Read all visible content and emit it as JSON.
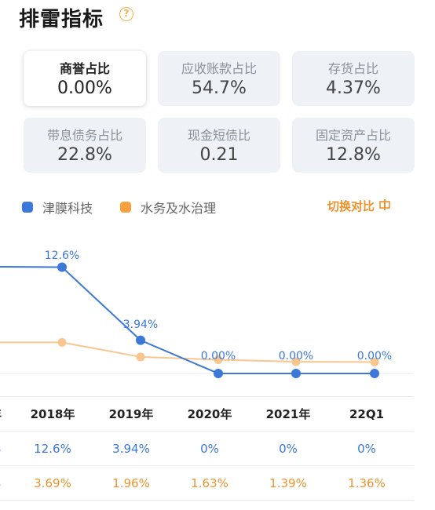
{
  "header": {
    "title": "排雷指标",
    "help_icon": "question-circle-icon"
  },
  "metrics": [
    {
      "label": "商誉占比",
      "value": "0.00%",
      "active": true
    },
    {
      "label": "应收账款占比",
      "value": "54.7%",
      "active": false
    },
    {
      "label": "存货占比",
      "value": "4.37%",
      "active": false
    },
    {
      "label": "带息债务占比",
      "value": "22.8%",
      "active": false
    },
    {
      "label": "现金短债比",
      "value": "0.21",
      "active": false
    },
    {
      "label": "固定资产占比",
      "value": "12.8%",
      "active": false
    }
  ],
  "legend": {
    "company": {
      "name": "津膜科技",
      "color": "#3c78d8"
    },
    "industry": {
      "name": "水务及水治理",
      "color": "#f7a23e"
    }
  },
  "toggle": {
    "label": "切换对比",
    "icon": "switch-icon"
  },
  "chart_data": {
    "type": "line",
    "categories": [
      "",
      "2018年",
      "2019年",
      "2020年",
      "2021年",
      "22Q1"
    ],
    "series": [
      {
        "name": "津膜科技",
        "values": [
          null,
          12.6,
          3.94,
          0,
          0,
          0
        ],
        "labels": [
          "%",
          "12.6%",
          "3.94%",
          "0.00%",
          "0.00%",
          "0.00%"
        ]
      },
      {
        "name": "水务及水治理",
        "values": [
          null,
          3.69,
          1.96,
          1.63,
          1.39,
          1.36
        ]
      }
    ]
  },
  "table": {
    "headers": [
      "年",
      "2018年",
      "2019年",
      "2020年",
      "2021年",
      "22Q1"
    ],
    "company_row": [
      "%",
      "12.6%",
      "3.94%",
      "0%",
      "0%",
      "0%"
    ],
    "industry_row": [
      "%",
      "3.69%",
      "1.96%",
      "1.63%",
      "1.39%",
      "1.36%"
    ]
  }
}
